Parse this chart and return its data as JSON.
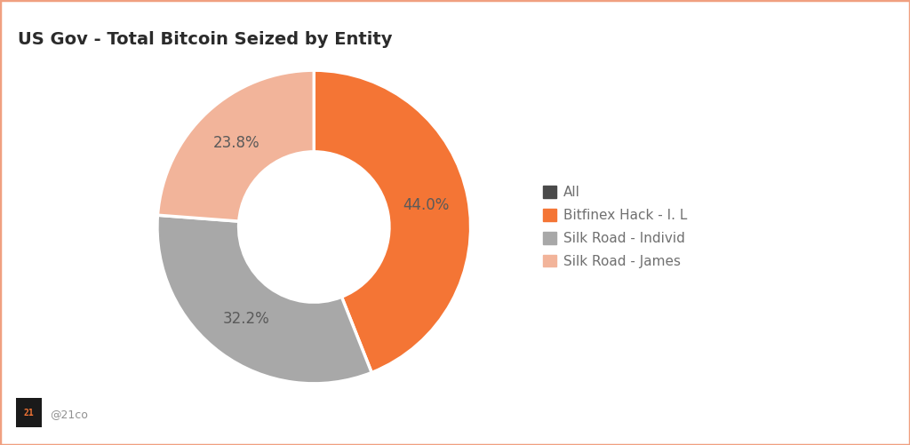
{
  "title": "US Gov - Total Bitcoin Seized by Entity",
  "slices": [
    44.0,
    32.2,
    23.8,
    0.0
  ],
  "labels": [
    "44.0%",
    "32.2%",
    "23.8%",
    ""
  ],
  "colors": [
    "#F47535",
    "#A8A8A8",
    "#F2B49A",
    "#4A4A4A"
  ],
  "legend_labels": [
    "All",
    "Bitfinex Hack - I. L",
    "Silk Road - Individ",
    "Silk Road - James"
  ],
  "legend_colors": [
    "#4A4A4A",
    "#F47535",
    "#A8A8A8",
    "#F2B49A"
  ],
  "bg_color": "#FFFFFF",
  "border_color": "#F0A080",
  "title_color": "#2B2B2B",
  "label_color": "#5A5A5A",
  "watermark": "@21co",
  "title_fontsize": 14,
  "label_fontsize": 12,
  "legend_fontsize": 11
}
